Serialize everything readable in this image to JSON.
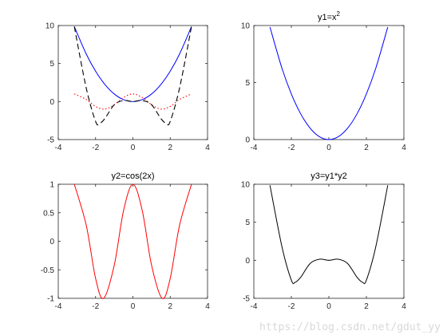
{
  "chart_data": [
    {
      "type": "line",
      "title": "",
      "xlim": [
        -4,
        4
      ],
      "ylim": [
        -5,
        10
      ],
      "xticks": [
        "-4",
        "-2",
        "0",
        "2",
        "4"
      ],
      "yticks": [
        "-5",
        "0",
        "5",
        "10"
      ],
      "grid": false,
      "series": [
        {
          "color": "#0000ff",
          "style": "solid",
          "x": [
            -3.14,
            -2.5,
            -2,
            -1.5,
            -1,
            -0.5,
            0,
            0.5,
            1,
            1.5,
            2,
            2.5,
            3.14
          ],
          "y": [
            9.86,
            6.25,
            4,
            2.25,
            1,
            0.25,
            0,
            0.25,
            1,
            2.25,
            4,
            6.25,
            9.86
          ]
        },
        {
          "color": "#ff0000",
          "style": "dotted",
          "x": [
            -3.14,
            -2.5,
            -2,
            -1.5,
            -1,
            -0.5,
            0,
            0.5,
            1,
            1.5,
            2,
            2.5,
            3.14
          ],
          "y": [
            1,
            0.28,
            -0.65,
            -0.99,
            -0.42,
            0.54,
            1,
            0.54,
            -0.42,
            -0.99,
            -0.65,
            0.28,
            1
          ]
        },
        {
          "color": "#000000",
          "style": "dashed",
          "x": [
            -3.14,
            -2.5,
            -2,
            -1.8,
            -1.5,
            -1,
            -0.5,
            0,
            0.5,
            1,
            1.5,
            1.8,
            2,
            2.5,
            3.14
          ],
          "y": [
            9.86,
            1.77,
            -2.61,
            -2.9,
            -2.23,
            -0.42,
            0.14,
            0,
            0.14,
            -0.42,
            -2.23,
            -2.9,
            -2.61,
            1.77,
            9.86
          ]
        }
      ]
    },
    {
      "type": "line",
      "title": "y1=x",
      "title_sup": "2",
      "xlim": [
        -4,
        4
      ],
      "ylim": [
        0,
        10
      ],
      "xticks": [
        "-4",
        "-2",
        "0",
        "2",
        "4"
      ],
      "yticks": [
        "0",
        "5",
        "10"
      ],
      "grid": false,
      "series": [
        {
          "color": "#0000ff",
          "style": "solid",
          "x": [
            -3.14,
            -2.5,
            -2,
            -1.5,
            -1,
            -0.5,
            0,
            0.5,
            1,
            1.5,
            2,
            2.5,
            3.14
          ],
          "y": [
            9.86,
            6.25,
            4,
            2.25,
            1,
            0.25,
            0,
            0.25,
            1,
            2.25,
            4,
            6.25,
            9.86
          ]
        }
      ]
    },
    {
      "type": "line",
      "title": "y2=cos(2x)",
      "xlim": [
        -4,
        4
      ],
      "ylim": [
        -1,
        1
      ],
      "xticks": [
        "-4",
        "-2",
        "0",
        "2",
        "4"
      ],
      "yticks": [
        "-1",
        "-0.5",
        "0",
        "0.5",
        "1"
      ],
      "grid": false,
      "series": [
        {
          "color": "#ff0000",
          "style": "solid",
          "x": [
            -3.14,
            -2.5,
            -2,
            -1.57,
            -1,
            -0.5,
            0,
            0.5,
            1,
            1.57,
            2,
            2.5,
            3.14
          ],
          "y": [
            1,
            0.28,
            -0.65,
            -1,
            -0.42,
            0.54,
            1,
            0.54,
            -0.42,
            -1,
            -0.65,
            0.28,
            1
          ]
        }
      ]
    },
    {
      "type": "line",
      "title": "y3=y1*y2",
      "xlim": [
        -4,
        4
      ],
      "ylim": [
        -5,
        10
      ],
      "xticks": [
        "-4",
        "-2",
        "0",
        "2",
        "4"
      ],
      "yticks": [
        "-5",
        "0",
        "5",
        "10"
      ],
      "grid": false,
      "series": [
        {
          "color": "#000000",
          "style": "solid",
          "x": [
            -3.14,
            -2.5,
            -2,
            -1.8,
            -1.5,
            -1,
            -0.5,
            0,
            0.5,
            1,
            1.5,
            1.8,
            2,
            2.5,
            3.14
          ],
          "y": [
            9.86,
            1.77,
            -2.61,
            -2.9,
            -2.23,
            -0.42,
            0.14,
            0,
            0.14,
            -0.42,
            -2.23,
            -2.9,
            -2.61,
            1.77,
            9.86
          ]
        }
      ]
    }
  ],
  "watermark": "https://blog.csdn.net/gdut_yy"
}
